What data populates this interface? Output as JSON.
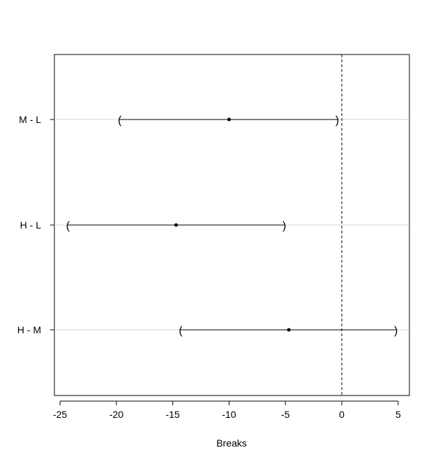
{
  "chart_data": {
    "type": "scatter",
    "xlabel": "Breaks",
    "ylabel": "",
    "xlim": [
      -25.5,
      6
    ],
    "x_ticks": [
      -25,
      -20,
      -15,
      -10,
      -5,
      0,
      5
    ],
    "x_tick_labels": [
      "-25",
      "-20",
      "-15",
      "-10",
      "-5",
      "0",
      "5"
    ],
    "reference_line_x": 0,
    "grid": "horizontal",
    "comparisons": [
      {
        "label": "M - L",
        "estimate": -10.0,
        "lower": -19.7,
        "upper": -0.4
      },
      {
        "label": "H - L",
        "estimate": -14.7,
        "lower": -24.3,
        "upper": -5.1
      },
      {
        "label": "H - M",
        "estimate": -4.7,
        "lower": -14.3,
        "upper": 4.8
      }
    ],
    "bracket_open": "(",
    "bracket_close": ")"
  }
}
